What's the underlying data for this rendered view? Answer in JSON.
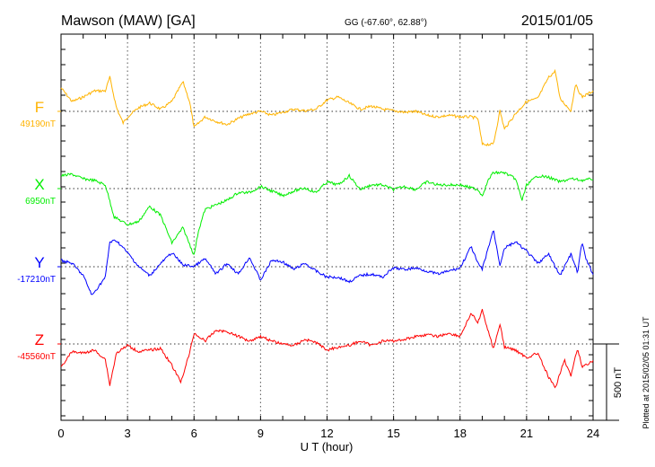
{
  "header": {
    "station": "Mawson (MAW)  [GA]",
    "coords": "GG (-67.60°,  62.88°)",
    "date": "2015/01/05"
  },
  "footer": {
    "plotted": "Plotted at 2015/02/05 01:31  UT",
    "scale_label": "500 nT"
  },
  "chart_data": {
    "type": "line",
    "title": "Mawson (MAW)  [GA]",
    "xlabel": "U T (hour)",
    "xlim": [
      0,
      24
    ],
    "xticks": [
      "0",
      "3",
      "6",
      "9",
      "12",
      "15",
      "18",
      "21",
      "24"
    ],
    "scale_bar_nT": 500,
    "grid": true,
    "series": [
      {
        "name": "F",
        "baseline_label": "49190nT",
        "color": "#ffb300",
        "x": [
          0,
          0.5,
          1,
          1.5,
          2,
          2.2,
          2.5,
          2.8,
          3,
          3.5,
          4,
          4.5,
          5,
          5.5,
          5.8,
          6,
          6.5,
          7,
          7.5,
          8,
          8.5,
          9,
          9.5,
          10,
          10.5,
          11,
          11.5,
          12,
          12.5,
          13,
          13.5,
          14,
          14.5,
          15,
          15.5,
          16,
          16.5,
          17,
          17.5,
          18,
          18.5,
          18.8,
          19,
          19.5,
          19.8,
          20,
          20.5,
          21,
          21.5,
          22,
          22.3,
          22.5,
          23,
          23.2,
          23.5,
          24
        ],
        "y": [
          154,
          64,
          94,
          134,
          134,
          224,
          24,
          -76,
          -36,
          24,
          54,
          14,
          64,
          194,
          64,
          -106,
          -36,
          -66,
          -86,
          -46,
          -16,
          0,
          -26,
          -6,
          14,
          4,
          14,
          74,
          94,
          54,
          14,
          34,
          14,
          4,
          -6,
          0,
          -26,
          -36,
          -26,
          -36,
          -36,
          -46,
          -216,
          -216,
          4,
          -116,
          -16,
          64,
          84,
          224,
          264,
          84,
          4,
          174,
          94,
          134
        ]
      },
      {
        "name": "X",
        "baseline_label": "6950nT",
        "color": "#00ee00",
        "x": [
          0,
          0.5,
          1,
          1.5,
          2,
          2.4,
          3,
          3.5,
          4,
          4.5,
          5,
          5.5,
          6,
          6.2,
          6.5,
          7,
          7.5,
          8,
          8.5,
          9,
          9.5,
          10,
          10.5,
          11,
          11.5,
          12,
          12.5,
          13,
          13.5,
          14,
          14.5,
          15,
          15.5,
          16,
          16.5,
          17,
          17.5,
          18,
          18.8,
          19,
          19.3,
          19.5,
          20,
          20.5,
          20.8,
          21,
          21.5,
          22,
          22.5,
          23,
          23.5,
          24
        ],
        "y": [
          84,
          94,
          64,
          54,
          24,
          -186,
          -236,
          -216,
          -116,
          -176,
          -356,
          -256,
          -436,
          -276,
          -136,
          -106,
          -76,
          -26,
          -26,
          14,
          -16,
          -46,
          -16,
          4,
          -26,
          44,
          24,
          84,
          -6,
          24,
          24,
          -6,
          14,
          -6,
          44,
          24,
          24,
          24,
          -6,
          -46,
          64,
          104,
          104,
          64,
          -76,
          24,
          84,
          74,
          44,
          64,
          54,
          64
        ]
      },
      {
        "name": "Y",
        "baseline_label": "-17210nT",
        "color": "#0000ff",
        "x": [
          0,
          0.5,
          1,
          1.4,
          2,
          2.2,
          2.5,
          3,
          3.5,
          4,
          4.5,
          5,
          5.5,
          6,
          6.5,
          7,
          7.5,
          8,
          8.5,
          9,
          9.5,
          10,
          10.5,
          11,
          11.5,
          12,
          12.5,
          13,
          13.5,
          14,
          14.5,
          15,
          15.5,
          16,
          16.5,
          17,
          17.5,
          18,
          18.5,
          18.8,
          19,
          19.5,
          19.8,
          20,
          20.5,
          21,
          21.5,
          22,
          22.5,
          23,
          23.3,
          23.5,
          23.7,
          24
        ],
        "y": [
          42,
          22,
          -58,
          -188,
          -68,
          162,
          172,
          92,
          2,
          -58,
          22,
          92,
          12,
          2,
          52,
          -48,
          22,
          -48,
          62,
          -88,
          42,
          32,
          -18,
          22,
          -28,
          -68,
          -68,
          -98,
          -58,
          -48,
          -68,
          -8,
          -18,
          -8,
          -28,
          -48,
          -28,
          -8,
          132,
          22,
          -18,
          242,
          12,
          122,
          162,
          102,
          22,
          82,
          -58,
          82,
          -38,
          162,
          42,
          -48
        ]
      },
      {
        "name": "Z",
        "baseline_label": "-45560nT",
        "color": "#ff0000",
        "x": [
          0,
          0.5,
          1,
          1.5,
          2,
          2.2,
          2.5,
          3,
          3.5,
          4,
          4.5,
          5,
          5.4,
          5.8,
          6,
          6.5,
          7,
          7.5,
          8,
          8.5,
          9,
          9.5,
          10,
          10.5,
          11,
          11.5,
          12,
          12.5,
          13,
          13.5,
          14,
          14.5,
          15,
          15.5,
          16,
          16.5,
          17,
          17.5,
          18,
          18.5,
          18.8,
          19,
          19.5,
          19.8,
          20,
          20.5,
          21,
          21.5,
          22,
          22.3,
          22.7,
          23,
          23.3,
          23.5,
          24
        ],
        "y": [
          -150,
          -50,
          -60,
          -40,
          -100,
          -270,
          -60,
          -10,
          -50,
          -40,
          -30,
          -140,
          -250,
          -60,
          70,
          20,
          90,
          80,
          50,
          20,
          50,
          20,
          0,
          -10,
          30,
          10,
          -40,
          -20,
          -10,
          20,
          -10,
          20,
          20,
          30,
          50,
          60,
          50,
          70,
          50,
          200,
          140,
          220,
          -30,
          130,
          -20,
          -40,
          -90,
          -60,
          -220,
          -290,
          -100,
          -210,
          -30,
          -150,
          -110
        ]
      }
    ]
  }
}
